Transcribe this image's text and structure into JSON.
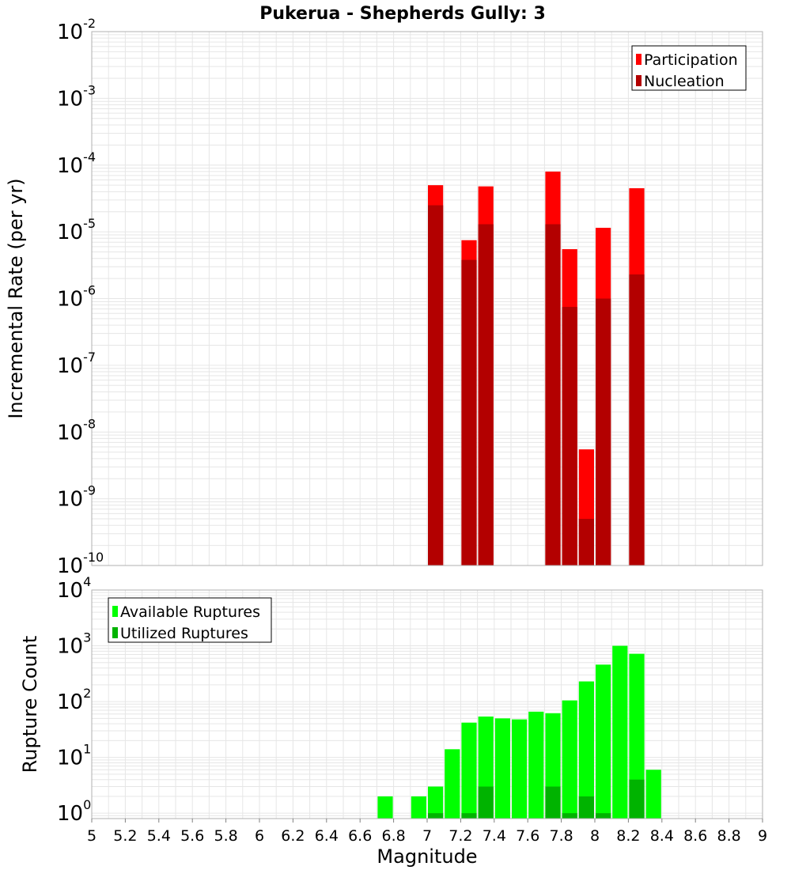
{
  "chart_data": {
    "title": "Pukerua - Shepherds Gully: 3",
    "xlabel": "Magnitude",
    "x_ticks": [
      "5",
      "5.2",
      "5.4",
      "5.6",
      "5.8",
      "6",
      "6.2",
      "6.4",
      "6.6",
      "6.8",
      "7",
      "7.2",
      "7.4",
      "7.6",
      "7.8",
      "8",
      "8.2",
      "8.4",
      "8.6",
      "8.8",
      "9"
    ],
    "xlim": [
      5,
      9
    ],
    "bin_width": 0.1,
    "grid": true,
    "colors": {
      "participation": "#ff0000",
      "nucleation": "#b30000",
      "available": "#00ff00",
      "utilized": "#00b300",
      "grid": "#e6e6e6",
      "frame": "#b0b0b0"
    },
    "panels": [
      {
        "id": "rates",
        "type": "bar",
        "ylabel": "Incremental Rate (per yr)",
        "yscale": "log",
        "ylim": [
          1e-10,
          0.01
        ],
        "y_ticks": [
          {
            "base": "10",
            "exp": "-10"
          },
          {
            "base": "10",
            "exp": "-9"
          },
          {
            "base": "10",
            "exp": "-8"
          },
          {
            "base": "10",
            "exp": "-7"
          },
          {
            "base": "10",
            "exp": "-6"
          },
          {
            "base": "10",
            "exp": "-5"
          },
          {
            "base": "10",
            "exp": "-4"
          },
          {
            "base": "10",
            "exp": "-3"
          },
          {
            "base": "10",
            "exp": "-2"
          }
        ],
        "legend_position": "top-right",
        "series": [
          {
            "name": "Participation",
            "color_key": "participation",
            "x": [
              7.05,
              7.25,
              7.35,
              7.75,
              7.85,
              7.95,
              8.05,
              8.25
            ],
            "values": [
              5e-05,
              7.5e-06,
              4.8e-05,
              8e-05,
              5.5e-06,
              5.5e-09,
              1.15e-05,
              4.5e-05
            ]
          },
          {
            "name": "Nucleation",
            "color_key": "nucleation",
            "x": [
              7.05,
              7.25,
              7.35,
              7.75,
              7.85,
              7.95,
              8.05,
              8.25
            ],
            "values": [
              2.5e-05,
              3.8e-06,
              1.3e-05,
              1.3e-05,
              7.5e-07,
              5e-10,
              1e-06,
              2.3e-06
            ]
          }
        ]
      },
      {
        "id": "counts",
        "type": "bar",
        "ylabel": "Rupture Count",
        "yscale": "log",
        "ylim": [
          0.8,
          10000.0
        ],
        "y_ticks": [
          {
            "base": "10",
            "exp": "0",
            "value": 1
          },
          {
            "base": "10",
            "exp": "1",
            "value": 10
          },
          {
            "base": "10",
            "exp": "2",
            "value": 100
          },
          {
            "base": "10",
            "exp": "3",
            "value": 1000
          },
          {
            "base": "10",
            "exp": "4",
            "value": 10000
          }
        ],
        "legend_position": "top-left",
        "series": [
          {
            "name": "Available Ruptures",
            "color_key": "available",
            "x": [
              6.75,
              6.95,
              7.05,
              7.15,
              7.25,
              7.35,
              7.45,
              7.55,
              7.65,
              7.75,
              7.85,
              7.95,
              8.05,
              8.15,
              8.25,
              8.35
            ],
            "values": [
              2,
              2,
              3,
              14,
              42,
              54,
              50,
              48,
              66,
              62,
              105,
              230,
              460,
              1000,
              720,
              6
            ]
          },
          {
            "name": "Utilized Ruptures",
            "color_key": "utilized",
            "x": [
              7.05,
              7.25,
              7.35,
              7.75,
              7.85,
              7.95,
              8.05,
              8.25
            ],
            "values": [
              1,
              1,
              3,
              3,
              1,
              2,
              1,
              4
            ]
          }
        ]
      }
    ]
  }
}
